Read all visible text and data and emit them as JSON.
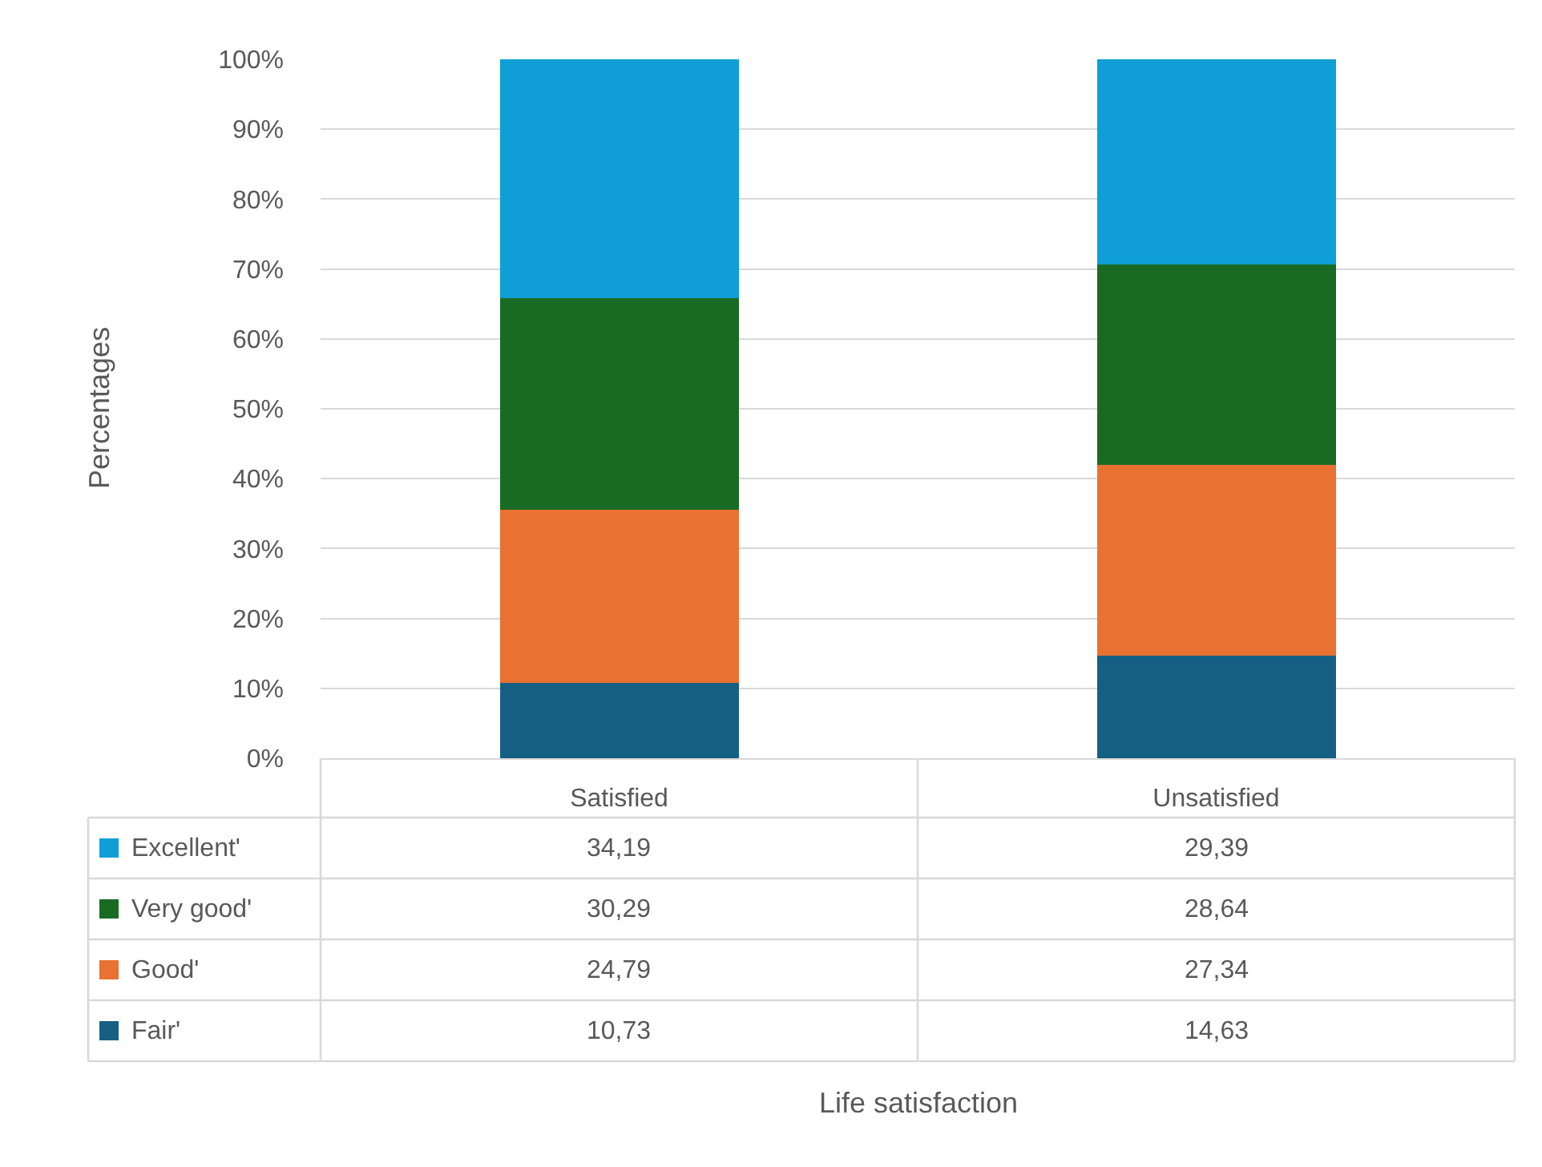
{
  "chart_data": {
    "type": "bar",
    "stacked": true,
    "annotations": [
      "Life satisfaction"
    ],
    "ylabel": "Percentages",
    "categories": [
      "Satisfied",
      "Unsatisfied"
    ],
    "series": [
      {
        "name": "Fair'",
        "color": "#156082",
        "values": [
          10.73,
          14.63
        ],
        "value_labels": [
          "10,73",
          "14,63"
        ]
      },
      {
        "name": "Good'",
        "color": "#e97132",
        "values": [
          24.79,
          27.34
        ],
        "value_labels": [
          "24,79",
          "27,34"
        ]
      },
      {
        "name": "Very good'",
        "color": "#196b24",
        "values": [
          30.29,
          28.64
        ],
        "value_labels": [
          "30,29",
          "28,64"
        ]
      },
      {
        "name": "Excellent'",
        "color": "#0f9ed5",
        "values": [
          34.19,
          29.39
        ],
        "value_labels": [
          "34,19",
          "29,39"
        ]
      }
    ],
    "ylim": [
      0,
      100
    ],
    "yticks": [
      {
        "value": 0,
        "label": "0%"
      },
      {
        "value": 10,
        "label": "10%"
      },
      {
        "value": 20,
        "label": "20%"
      },
      {
        "value": 30,
        "label": "30%"
      },
      {
        "value": 40,
        "label": "40%"
      },
      {
        "value": 50,
        "label": "50%"
      },
      {
        "value": 60,
        "label": "60%"
      },
      {
        "value": 70,
        "label": "70%"
      },
      {
        "value": 80,
        "label": "80%"
      },
      {
        "value": 90,
        "label": "90%"
      },
      {
        "value": 100,
        "label": "100%"
      }
    ],
    "grid": "y",
    "legend": "bottom left"
  }
}
